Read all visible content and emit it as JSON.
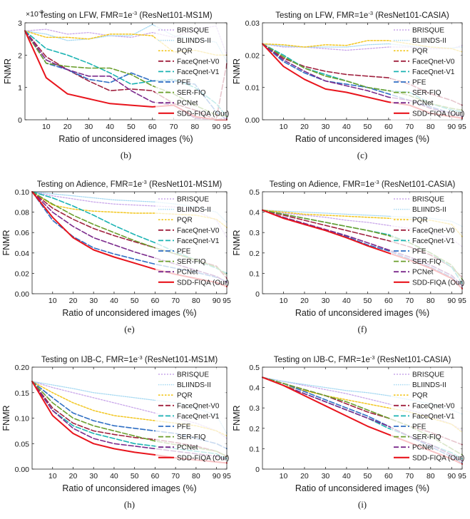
{
  "figure": {
    "x_ticks": [
      "10",
      "20",
      "30",
      "40",
      "50",
      "60",
      "70",
      "80",
      "90",
      "95"
    ],
    "x_values": [
      0,
      10,
      20,
      30,
      40,
      50,
      60,
      70,
      80,
      90,
      95
    ],
    "xlabel": "Ratio of unconsidered images (%)",
    "ylabel": "FNMR",
    "title_prefix": "Testing on",
    "title_fmr": "FMR=1e",
    "title_exp": "-3",
    "legend": [
      "BRISQUE",
      "BLIINDS-II",
      "PQR",
      "FaceQnet-V0",
      "FaceQnet-V1",
      "PFE",
      "SER-FIQ",
      "PCNet",
      "SDD-FIQA (Our)"
    ],
    "colors": [
      "#c9a6ea",
      "#a6d9f2",
      "#f2c61f",
      "#a0213f",
      "#1ab3b3",
      "#2f6fc4",
      "#6b9f2d",
      "#7b2a8c",
      "#e8141c"
    ]
  },
  "chart_data": [
    {
      "type": "line",
      "caption": "(b)",
      "dataset": "LFW",
      "model": "(ResNet101-MS1M)",
      "ylim": [
        0,
        3
      ],
      "yticks": [
        "0",
        "1",
        "2",
        "3"
      ],
      "multiplier": "×10",
      "multiplier_exp": "-3",
      "series": [
        {
          "name": "BRISQUE",
          "values": [
            2.75,
            2.8,
            2.65,
            2.7,
            2.6,
            2.55,
            2.7,
            2.55,
            2.8,
            2.9,
            2.0
          ]
        },
        {
          "name": "BLIINDS-II",
          "values": [
            2.75,
            2.65,
            2.45,
            2.5,
            2.6,
            2.6,
            2.95,
            2.6,
            2.5,
            2.4,
            1.8
          ]
        },
        {
          "name": "PQR",
          "values": [
            2.75,
            2.55,
            2.55,
            2.5,
            2.65,
            2.65,
            2.6,
            2.1,
            2.15,
            2.0,
            2.0
          ]
        },
        {
          "name": "FaceQnet-V0",
          "values": [
            2.75,
            1.95,
            1.55,
            1.2,
            0.9,
            0.95,
            0.9,
            0.5,
            0.3,
            0.0,
            1.75
          ]
        },
        {
          "name": "FaceQnet-V1",
          "values": [
            2.75,
            2.2,
            2.0,
            1.75,
            1.45,
            1.1,
            1.2,
            1.25,
            1.0,
            0.5,
            0.1
          ]
        },
        {
          "name": "PFE",
          "values": [
            2.75,
            1.75,
            1.55,
            1.25,
            1.15,
            1.45,
            1.2,
            1.2,
            1.1,
            0.25,
            0.0
          ]
        },
        {
          "name": "SER-FIQ",
          "values": [
            2.75,
            1.75,
            1.65,
            1.6,
            1.6,
            1.4,
            1.05,
            0.8,
            0.45,
            0.15,
            0.1
          ]
        },
        {
          "name": "PCNet",
          "values": [
            2.75,
            1.85,
            1.55,
            1.35,
            1.35,
            0.9,
            0.55,
            0.45,
            0.05,
            0.0,
            0.05
          ]
        },
        {
          "name": "SDD-FIQA (Our)",
          "values": [
            2.75,
            1.3,
            0.8,
            0.65,
            0.5,
            0.45,
            0.4,
            0.45,
            0.1,
            0.0,
            0.0
          ]
        }
      ]
    },
    {
      "type": "line",
      "caption": "(c)",
      "dataset": "LFW",
      "model": "(ResNet101-CASIA)",
      "ylim": [
        0,
        0.03
      ],
      "yticks": [
        "0.00",
        "0.01",
        "0.02",
        "0.03"
      ],
      "series": [
        {
          "name": "BRISQUE",
          "values": [
            0.0235,
            0.0225,
            0.0225,
            0.022,
            0.0215,
            0.022,
            0.0225,
            0.0225,
            0.022,
            0.022,
            0.023
          ]
        },
        {
          "name": "BLIINDS-II",
          "values": [
            0.0235,
            0.0228,
            0.0225,
            0.0225,
            0.0225,
            0.0232,
            0.0235,
            0.0228,
            0.0225,
            0.0222,
            0.0225
          ]
        },
        {
          "name": "PQR",
          "values": [
            0.0235,
            0.0232,
            0.0225,
            0.0232,
            0.023,
            0.0245,
            0.0245,
            0.0235,
            0.0225,
            0.022,
            0.021
          ]
        },
        {
          "name": "FaceQnet-V0",
          "values": [
            0.0235,
            0.019,
            0.0165,
            0.015,
            0.014,
            0.0135,
            0.013,
            0.011,
            0.008,
            0.006,
            0.0045
          ]
        },
        {
          "name": "FaceQnet-V1",
          "values": [
            0.0235,
            0.02,
            0.016,
            0.014,
            0.012,
            0.01,
            0.009,
            0.0085,
            0.005,
            0.003,
            0.0025
          ]
        },
        {
          "name": "PFE",
          "values": [
            0.0235,
            0.018,
            0.0145,
            0.012,
            0.011,
            0.01,
            0.008,
            0.006,
            0.004,
            0.002,
            0.001
          ]
        },
        {
          "name": "SER-FIQ",
          "values": [
            0.0235,
            0.0195,
            0.016,
            0.0135,
            0.012,
            0.01,
            0.009,
            0.0075,
            0.005,
            0.0035,
            0.003
          ]
        },
        {
          "name": "PCNet",
          "values": [
            0.0235,
            0.0185,
            0.015,
            0.012,
            0.0105,
            0.009,
            0.007,
            0.006,
            0.0035,
            0.002,
            0.001
          ]
        },
        {
          "name": "SDD-FIQA (Our)",
          "values": [
            0.0235,
            0.0165,
            0.0125,
            0.0095,
            0.0085,
            0.007,
            0.0055,
            0.0045,
            0.002,
            0.001,
            0.0005
          ]
        }
      ]
    },
    {
      "type": "line",
      "caption": "(e)",
      "dataset": "Adience",
      "model": "(ResNet101-MS1M)",
      "ylim": [
        0,
        0.1
      ],
      "yticks": [
        "0.00",
        "0.02",
        "0.04",
        "0.06",
        "0.08",
        "0.10"
      ],
      "series": [
        {
          "name": "BRISQUE",
          "values": [
            0.1,
            0.096,
            0.093,
            0.09,
            0.088,
            0.087,
            0.086,
            0.085,
            0.081,
            0.072,
            0.055
          ]
        },
        {
          "name": "BLIINDS-II",
          "values": [
            0.1,
            0.098,
            0.096,
            0.094,
            0.092,
            0.091,
            0.09,
            0.088,
            0.085,
            0.08,
            0.07
          ]
        },
        {
          "name": "PQR",
          "values": [
            0.1,
            0.087,
            0.083,
            0.081,
            0.08,
            0.079,
            0.079,
            0.078,
            0.077,
            0.073,
            0.065
          ]
        },
        {
          "name": "FaceQnet-V0",
          "values": [
            0.1,
            0.084,
            0.073,
            0.064,
            0.057,
            0.051,
            0.045,
            0.039,
            0.033,
            0.027,
            0.015
          ]
        },
        {
          "name": "FaceQnet-V1",
          "values": [
            0.1,
            0.094,
            0.086,
            0.077,
            0.067,
            0.058,
            0.05,
            0.041,
            0.033,
            0.025,
            0.02
          ]
        },
        {
          "name": "PFE",
          "values": [
            0.1,
            0.072,
            0.056,
            0.045,
            0.039,
            0.034,
            0.029,
            0.025,
            0.021,
            0.016,
            0.012
          ]
        },
        {
          "name": "SER-FIQ",
          "values": [
            0.1,
            0.088,
            0.077,
            0.068,
            0.06,
            0.052,
            0.045,
            0.039,
            0.033,
            0.026,
            0.018
          ]
        },
        {
          "name": "PCNet",
          "values": [
            0.1,
            0.08,
            0.066,
            0.055,
            0.048,
            0.041,
            0.035,
            0.029,
            0.023,
            0.017,
            0.011
          ]
        },
        {
          "name": "SDD-FIQA (Our)",
          "values": [
            0.1,
            0.075,
            0.055,
            0.043,
            0.036,
            0.03,
            0.024,
            0.019,
            0.015,
            0.011,
            0.007
          ]
        }
      ]
    },
    {
      "type": "line",
      "caption": "(f)",
      "dataset": "Adience",
      "model": "(ResNet101-CASIA)",
      "ylim": [
        0,
        0.5
      ],
      "yticks": [
        "0",
        "0.1",
        "0.2",
        "0.3",
        "0.4",
        "0.5"
      ],
      "series": [
        {
          "name": "BRISQUE",
          "values": [
            0.41,
            0.395,
            0.385,
            0.375,
            0.36,
            0.35,
            0.335,
            0.32,
            0.3,
            0.27,
            0.23
          ]
        },
        {
          "name": "BLIINDS-II",
          "values": [
            0.41,
            0.405,
            0.4,
            0.395,
            0.39,
            0.385,
            0.38,
            0.375,
            0.37,
            0.355,
            0.33
          ]
        },
        {
          "name": "PQR",
          "values": [
            0.41,
            0.4,
            0.39,
            0.385,
            0.38,
            0.375,
            0.37,
            0.365,
            0.36,
            0.34,
            0.28
          ]
        },
        {
          "name": "FaceQnet-V0",
          "values": [
            0.41,
            0.385,
            0.36,
            0.335,
            0.31,
            0.285,
            0.26,
            0.23,
            0.19,
            0.13,
            0.08
          ]
        },
        {
          "name": "FaceQnet-V1",
          "values": [
            0.41,
            0.39,
            0.37,
            0.35,
            0.33,
            0.31,
            0.29,
            0.25,
            0.2,
            0.13,
            0.05
          ]
        },
        {
          "name": "PFE",
          "values": [
            0.41,
            0.37,
            0.34,
            0.31,
            0.28,
            0.24,
            0.21,
            0.17,
            0.13,
            0.08,
            0.03
          ]
        },
        {
          "name": "SER-FIQ",
          "values": [
            0.41,
            0.39,
            0.37,
            0.35,
            0.33,
            0.31,
            0.285,
            0.25,
            0.2,
            0.14,
            0.07
          ]
        },
        {
          "name": "PCNet",
          "values": [
            0.41,
            0.375,
            0.345,
            0.315,
            0.285,
            0.25,
            0.215,
            0.18,
            0.14,
            0.09,
            0.04
          ]
        },
        {
          "name": "SDD-FIQA (Our)",
          "values": [
            0.41,
            0.37,
            0.34,
            0.31,
            0.275,
            0.235,
            0.2,
            0.165,
            0.125,
            0.075,
            0.025
          ]
        }
      ]
    },
    {
      "type": "line",
      "caption": "(h)",
      "dataset": "IJB-C",
      "model": "(ResNet101-MS1M)",
      "ylim": [
        0,
        0.2
      ],
      "yticks": [
        "0.00",
        "0.05",
        "0.10",
        "0.15",
        "0.20"
      ],
      "series": [
        {
          "name": "BRISQUE",
          "values": [
            0.172,
            0.16,
            0.15,
            0.14,
            0.13,
            0.12,
            0.11,
            0.1,
            0.09,
            0.075,
            0.06
          ]
        },
        {
          "name": "BLIINDS-II",
          "values": [
            0.172,
            0.165,
            0.158,
            0.15,
            0.145,
            0.14,
            0.135,
            0.13,
            0.12,
            0.105,
            0.07
          ]
        },
        {
          "name": "PQR",
          "values": [
            0.172,
            0.15,
            0.13,
            0.115,
            0.105,
            0.1,
            0.095,
            0.09,
            0.085,
            0.075,
            0.065
          ]
        },
        {
          "name": "FaceQnet-V0",
          "values": [
            0.172,
            0.12,
            0.09,
            0.075,
            0.068,
            0.062,
            0.058,
            0.052,
            0.045,
            0.035,
            0.025
          ]
        },
        {
          "name": "FaceQnet-V1",
          "values": [
            0.172,
            0.115,
            0.085,
            0.07,
            0.06,
            0.05,
            0.045,
            0.04,
            0.035,
            0.03,
            0.02
          ]
        },
        {
          "name": "PFE",
          "values": [
            0.172,
            0.14,
            0.11,
            0.095,
            0.085,
            0.08,
            0.075,
            0.07,
            0.06,
            0.05,
            0.04
          ]
        },
        {
          "name": "SER-FIQ",
          "values": [
            0.172,
            0.13,
            0.1,
            0.085,
            0.075,
            0.065,
            0.055,
            0.048,
            0.042,
            0.035,
            0.025
          ]
        },
        {
          "name": "PCNet",
          "values": [
            0.172,
            0.115,
            0.08,
            0.06,
            0.05,
            0.045,
            0.04,
            0.035,
            0.03,
            0.025,
            0.018
          ]
        },
        {
          "name": "SDD-FIQA (Our)",
          "values": [
            0.172,
            0.105,
            0.07,
            0.05,
            0.04,
            0.033,
            0.028,
            0.022,
            0.018,
            0.014,
            0.012
          ]
        }
      ]
    },
    {
      "type": "line",
      "caption": "(i)",
      "dataset": "IJB-C",
      "model": "(ResNet101-CASIA)",
      "ylim": [
        0,
        0.5
      ],
      "yticks": [
        "0",
        "0.1",
        "0.2",
        "0.3",
        "0.4",
        "0.5"
      ],
      "series": [
        {
          "name": "BRISQUE",
          "values": [
            0.45,
            0.43,
            0.41,
            0.39,
            0.37,
            0.345,
            0.32,
            0.29,
            0.26,
            0.22,
            0.19
          ]
        },
        {
          "name": "BLIINDS-II",
          "values": [
            0.45,
            0.43,
            0.415,
            0.4,
            0.385,
            0.375,
            0.36,
            0.34,
            0.32,
            0.29,
            0.27
          ]
        },
        {
          "name": "PQR",
          "values": [
            0.45,
            0.41,
            0.385,
            0.36,
            0.34,
            0.32,
            0.3,
            0.28,
            0.25,
            0.22,
            0.18
          ]
        },
        {
          "name": "FaceQnet-V0",
          "values": [
            0.45,
            0.42,
            0.39,
            0.36,
            0.32,
            0.28,
            0.25,
            0.21,
            0.18,
            0.14,
            0.12
          ]
        },
        {
          "name": "FaceQnet-V1",
          "values": [
            0.45,
            0.41,
            0.37,
            0.33,
            0.29,
            0.25,
            0.2,
            0.16,
            0.12,
            0.08,
            0.05
          ]
        },
        {
          "name": "PFE",
          "values": [
            0.45,
            0.42,
            0.38,
            0.34,
            0.3,
            0.26,
            0.21,
            0.16,
            0.11,
            0.06,
            0.03
          ]
        },
        {
          "name": "SER-FIQ",
          "values": [
            0.45,
            0.42,
            0.39,
            0.36,
            0.33,
            0.29,
            0.25,
            0.21,
            0.16,
            0.1,
            0.07
          ]
        },
        {
          "name": "PCNet",
          "values": [
            0.45,
            0.41,
            0.37,
            0.33,
            0.29,
            0.25,
            0.21,
            0.16,
            0.12,
            0.07,
            0.04
          ]
        },
        {
          "name": "SDD-FIQA (Our)",
          "values": [
            0.45,
            0.41,
            0.36,
            0.31,
            0.26,
            0.21,
            0.17,
            0.13,
            0.09,
            0.05,
            0.025
          ]
        }
      ]
    }
  ]
}
